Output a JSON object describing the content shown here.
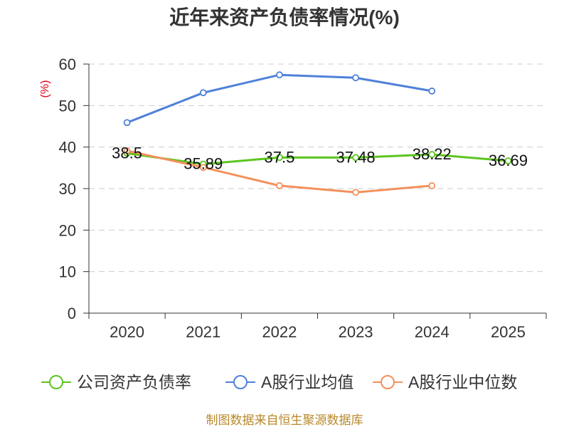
{
  "footer": "制图数据来自恒生聚源数据库",
  "chart_data": {
    "type": "line",
    "title": "近年来资产负债率情况(%)",
    "xlabel": "",
    "ylabel": "(%)",
    "categories": [
      "2020",
      "2021",
      "2022",
      "2023",
      "2024",
      "2025"
    ],
    "ylim": [
      0,
      60
    ],
    "yticks": [
      0,
      10,
      20,
      30,
      40,
      50,
      60
    ],
    "grid": true,
    "legend_position": "bottom",
    "series": [
      {
        "name": "公司资产负债率",
        "color": "#5cc51f",
        "show_labels": true,
        "values": [
          38.5,
          35.89,
          37.5,
          37.48,
          38.22,
          36.69
        ]
      },
      {
        "name": "A股行业均值",
        "color": "#4f81d9",
        "show_labels": false,
        "values": [
          45.9,
          53.1,
          57.4,
          56.7,
          53.5,
          null
        ]
      },
      {
        "name": "A股行业中位数",
        "color": "#f3915c",
        "show_labels": false,
        "values": [
          39.1,
          35.1,
          30.7,
          29.1,
          30.7,
          null
        ]
      }
    ]
  }
}
